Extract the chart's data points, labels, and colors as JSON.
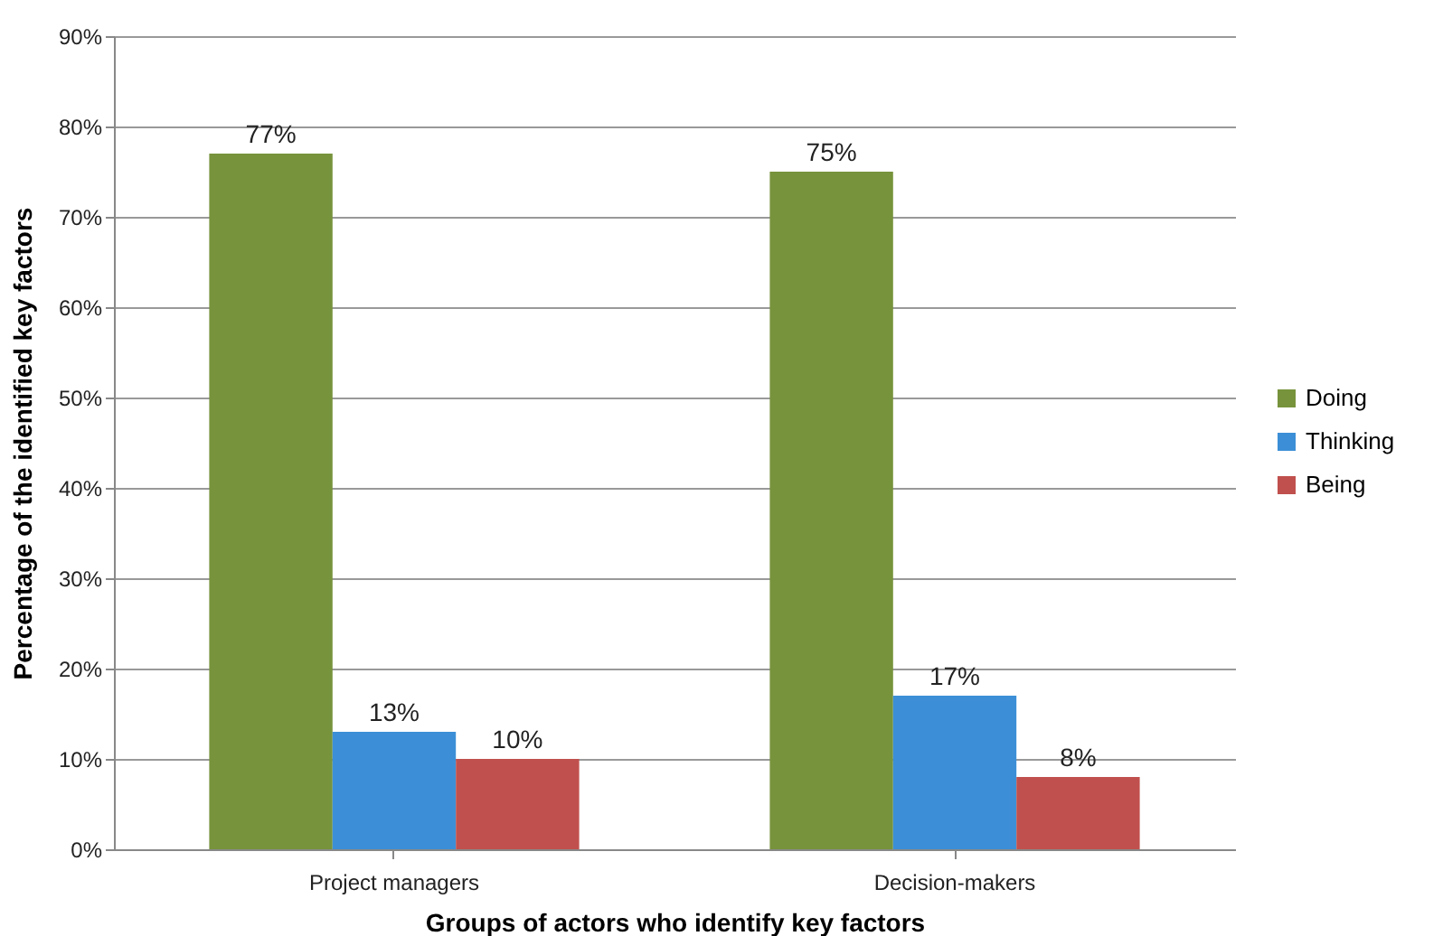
{
  "chart_data": {
    "type": "bar",
    "xlabel": "Groups of actors who identify key factors",
    "ylabel": "Percentage of the  identified key factors",
    "categories": [
      "Project managers",
      "Decision-makers"
    ],
    "series": [
      {
        "name": "Doing",
        "color": "#77933c",
        "values": [
          77,
          75
        ],
        "value_labels": [
          "77%",
          "75%"
        ]
      },
      {
        "name": "Thinking",
        "color": "#3c8fd6",
        "values": [
          13,
          17
        ],
        "value_labels": [
          "13%",
          "17%"
        ]
      },
      {
        "name": "Being",
        "color": "#c0504d",
        "values": [
          10,
          8
        ],
        "value_labels": [
          "10%",
          "8%"
        ]
      }
    ],
    "ylim": [
      0,
      90
    ],
    "yticks": [
      {
        "value": 0,
        "label": "0%"
      },
      {
        "value": 10,
        "label": "10%"
      },
      {
        "value": 20,
        "label": "20%"
      },
      {
        "value": 30,
        "label": "30%"
      },
      {
        "value": 40,
        "label": "40%"
      },
      {
        "value": 50,
        "label": "50%"
      },
      {
        "value": 60,
        "label": "60%"
      },
      {
        "value": 70,
        "label": "70%"
      },
      {
        "value": 80,
        "label": "80%"
      },
      {
        "value": 90,
        "label": "90%"
      }
    ],
    "grid": "y",
    "legend": "right"
  }
}
